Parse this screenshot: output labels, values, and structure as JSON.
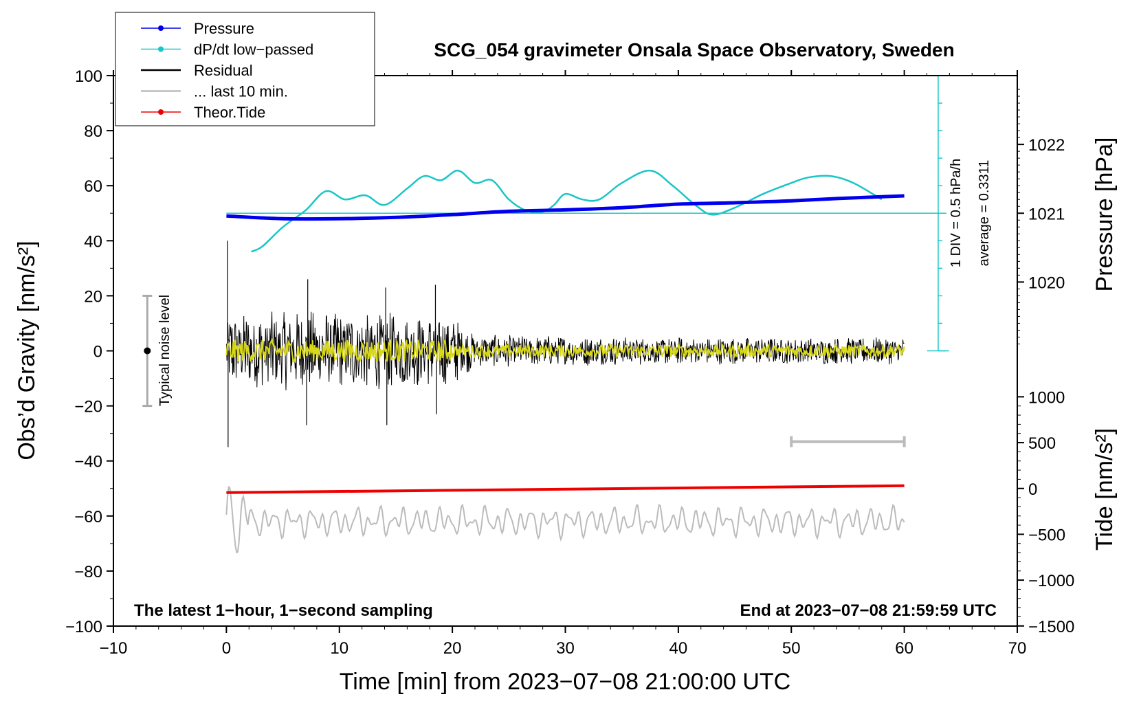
{
  "chart_data": {
    "type": "line",
    "title": "SCG_054 gravimeter Onsala Space Observatory, Sweden",
    "xlabel": "Time [min] from 2023−07−08 21:00:00 UTC",
    "ylabel_left": "Obs’d Gravity [nm/s²]",
    "ylabel_right_top": "Pressure [hPa]",
    "ylabel_right_bottom": "Tide [nm/s²]",
    "xlim": [
      -10,
      70
    ],
    "ylim": [
      -100,
      100
    ],
    "x_ticks": [
      {
        "value": -10,
        "label": "−10"
      },
      {
        "value": 0,
        "label": "0"
      },
      {
        "value": 10,
        "label": "10"
      },
      {
        "value": 20,
        "label": "20"
      },
      {
        "value": 30,
        "label": "30"
      },
      {
        "value": 40,
        "label": "40"
      },
      {
        "value": 50,
        "label": "50"
      },
      {
        "value": 60,
        "label": "60"
      },
      {
        "value": 70,
        "label": "70"
      }
    ],
    "y_ticks": [
      {
        "value": 100,
        "label": "100"
      },
      {
        "value": 80,
        "label": "80"
      },
      {
        "value": 60,
        "label": "60"
      },
      {
        "value": 40,
        "label": "40"
      },
      {
        "value": 20,
        "label": "20"
      },
      {
        "value": 0,
        "label": "0"
      },
      {
        "value": -20,
        "label": "−20"
      },
      {
        "value": -40,
        "label": "−40"
      },
      {
        "value": -60,
        "label": "−60"
      },
      {
        "value": -80,
        "label": "−80"
      },
      {
        "value": -100,
        "label": "−100"
      }
    ],
    "pressure_axis": {
      "ticks": [
        {
          "hpa": 1022,
          "label": "1022"
        },
        {
          "hpa": 1021,
          "label": "1021"
        },
        {
          "hpa": 1020,
          "label": "1020"
        }
      ],
      "y_at_1021": 50,
      "units_per_hpa": 25
    },
    "tide_axis": {
      "ticks": [
        {
          "value": 1000,
          "label": "1000"
        },
        {
          "value": 500,
          "label": "500"
        },
        {
          "value": 0,
          "label": "0"
        },
        {
          "value": -500,
          "label": "−500"
        },
        {
          "value": -1000,
          "label": "−1000"
        },
        {
          "value": -1500,
          "label": "−1500"
        }
      ],
      "y_at_zero": -50,
      "units_per_1000": 33.3
    },
    "legend": {
      "position": "top-left",
      "entries": [
        {
          "label": "Pressure",
          "color": "#0000ee",
          "marker": true
        },
        {
          "label": "dP/dt low−passed",
          "color": "#19c6c6",
          "marker": true
        },
        {
          "label": "Residual",
          "color": "#000000",
          "marker": false
        },
        {
          "label": "... last 10 min.",
          "color": "#bbbbbb",
          "marker": false
        },
        {
          "label": "Theor.Tide",
          "color": "#ee0000",
          "marker": true
        }
      ]
    },
    "series": [
      {
        "name": "Pressure",
        "color": "#0000ee",
        "x": [
          0,
          5,
          10,
          15,
          20,
          25,
          30,
          35,
          40,
          45,
          50,
          55,
          60
        ],
        "values": [
          49,
          48,
          48,
          48.5,
          49.5,
          50.7,
          51.2,
          52,
          53.3,
          53.8,
          54.5,
          55.5,
          56.3
        ]
      },
      {
        "name": "dP/dt low−passed",
        "color": "#19c6c6",
        "x": [
          2.2,
          3.2,
          5,
          7,
          8.8,
          10.5,
          12.3,
          14,
          16,
          17.5,
          19,
          20.5,
          22,
          23.5,
          25,
          26.5,
          28,
          29,
          30,
          31.5,
          33,
          35,
          37.5,
          39.5,
          41.5,
          43,
          45,
          47.5,
          50,
          51.5,
          53.5,
          55.5,
          58
        ],
        "values": [
          36,
          38,
          45,
          51,
          58,
          55,
          56.5,
          53,
          59,
          63.5,
          62,
          65.5,
          61,
          62,
          55,
          51,
          50.5,
          53,
          57,
          55,
          55,
          61,
          65.5,
          60,
          53,
          49.5,
          52,
          57,
          61,
          63,
          63.5,
          61,
          55
        ]
      },
      {
        "name": "Residual",
        "color": "#000000",
        "x_range": [
          0,
          60
        ],
        "amplitude_envelope": [
          {
            "x": 0,
            "amp": 14
          },
          {
            "x": 10,
            "amp": 15
          },
          {
            "x": 20,
            "amp": 13
          },
          {
            "x": 22,
            "amp": 6
          },
          {
            "x": 40,
            "amp": 5
          },
          {
            "x": 60,
            "amp": 5
          }
        ],
        "spikes": [
          {
            "x": 0.1,
            "value": 40
          },
          {
            "x": 0.15,
            "value": -35
          },
          {
            "x": 7.2,
            "value": 26
          },
          {
            "x": 14.1,
            "value": 23
          },
          {
            "x": 14.2,
            "value": -27
          },
          {
            "x": 18.5,
            "value": 24
          },
          {
            "x": 18.6,
            "value": -23
          },
          {
            "x": 7.1,
            "value": -27
          }
        ]
      },
      {
        "name": "Residual smoothed",
        "color": "#d8d81a",
        "x_range": [
          0,
          60
        ]
      },
      {
        "name": "... last 10 min.",
        "color": "#bbbbbb",
        "x_range": [
          0,
          60
        ],
        "baseline": -62,
        "amplitude": 5
      },
      {
        "name": "Theor.Tide",
        "color": "#ee0000",
        "x": [
          0,
          60
        ],
        "values": [
          -51.5,
          -49
        ]
      }
    ],
    "dpdt_reference_line": {
      "value": 50,
      "x_range": [
        0,
        63
      ]
    },
    "scale_bar": {
      "x": 63,
      "y_range": [
        0,
        100
      ],
      "label": "1 DIV = 0.5 hPa/h",
      "average_label": "average = 0.3311"
    },
    "last10_bracket": {
      "x_range": [
        50,
        60
      ],
      "value": -33
    },
    "noise_bar": {
      "x": -7,
      "value_range": [
        -20,
        20
      ],
      "label": "Typical noise level"
    },
    "footer_left": "The latest 1−hour, 1−second sampling",
    "footer_right": "End at 2023−07−08 21:59:59 UTC"
  }
}
